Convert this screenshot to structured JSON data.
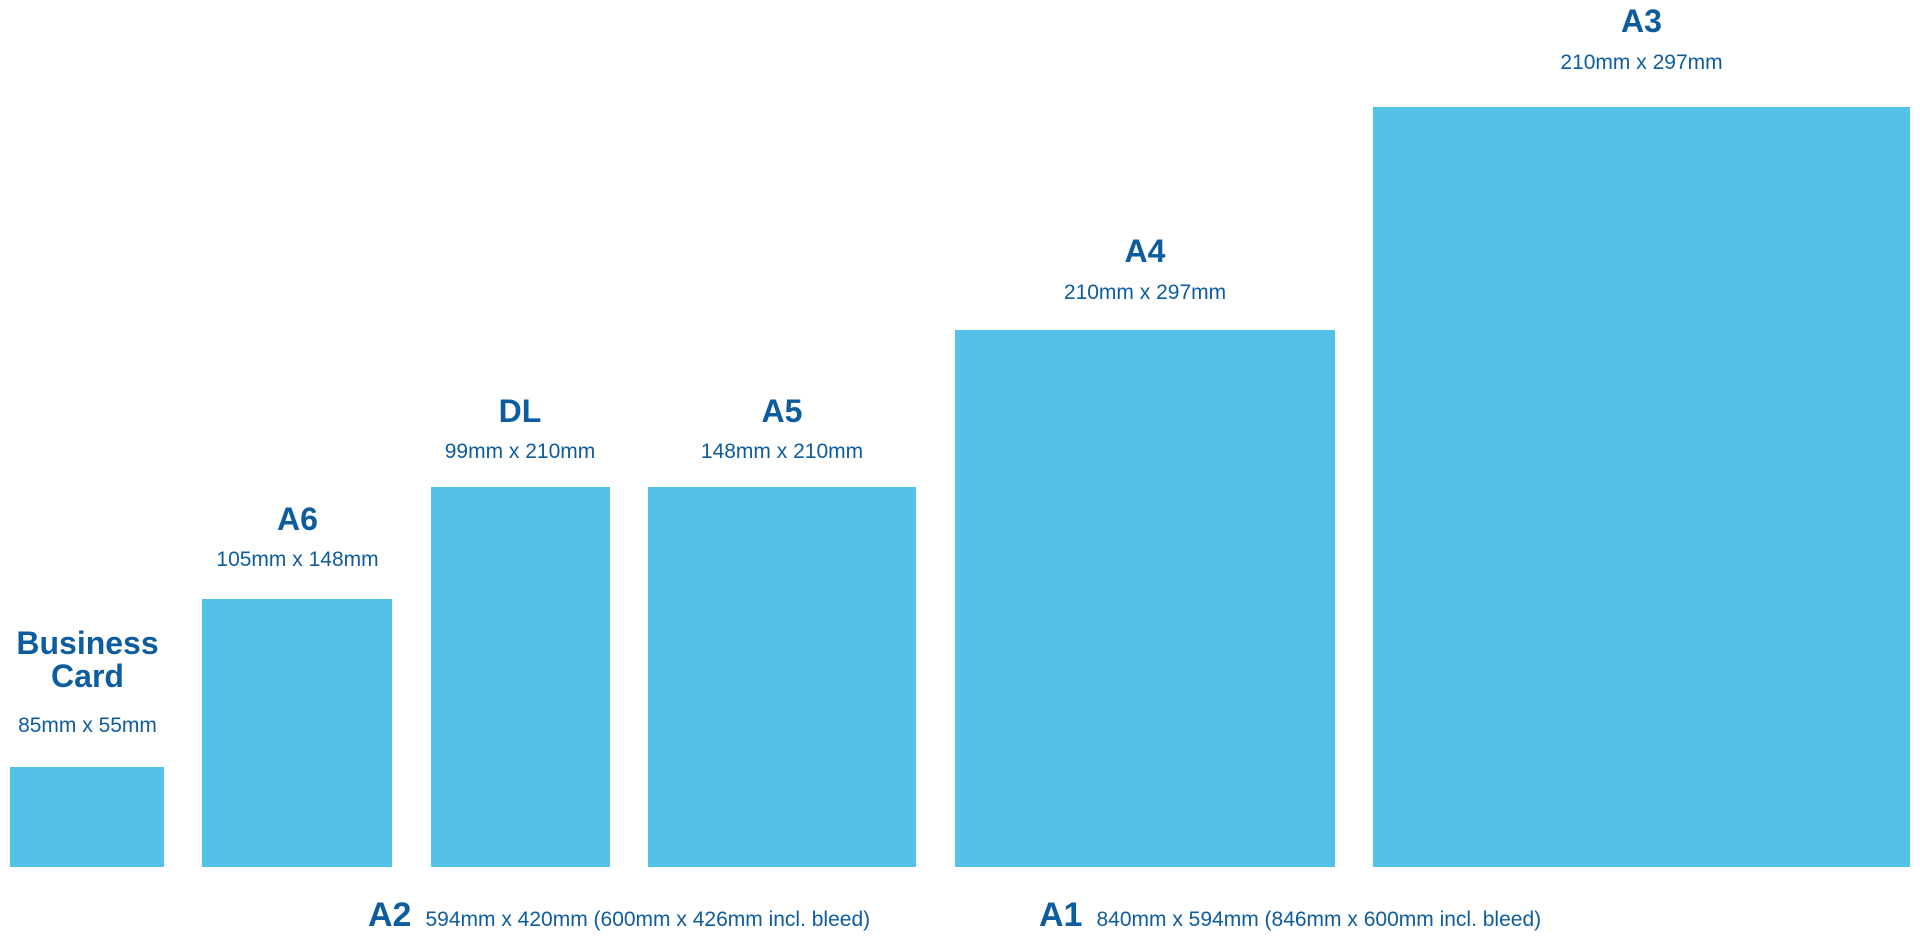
{
  "colors": {
    "card_fill": "#54c1e8",
    "text": "#0d5c9e",
    "background": "#ffffff"
  },
  "sizes": [
    {
      "name": "Business\nCard",
      "dims": "85mm x 55mm"
    },
    {
      "name": "A6",
      "dims": "105mm x 148mm"
    },
    {
      "name": "DL",
      "dims": "99mm x 210mm"
    },
    {
      "name": "A5",
      "dims": "148mm x 210mm"
    },
    {
      "name": "A4",
      "dims": "210mm x 297mm"
    },
    {
      "name": "A3",
      "dims": "210mm x 297mm"
    }
  ],
  "large_formats": [
    {
      "name": "A2",
      "dims": "594mm x 420mm (600mm x 426mm incl. bleed)"
    },
    {
      "name": "A1",
      "dims": "840mm x 594mm (846mm x 600mm incl. bleed)"
    }
  ]
}
